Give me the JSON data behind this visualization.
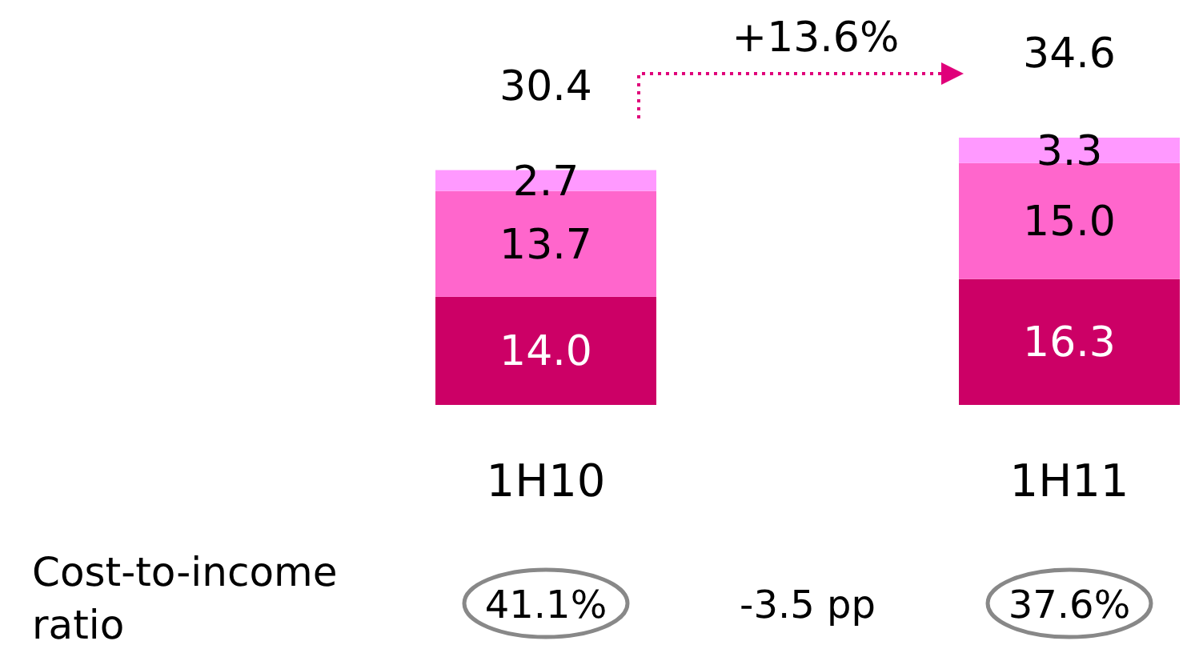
{
  "chart_data": {
    "type": "bar",
    "stacked": true,
    "categories": [
      "1H10",
      "1H11"
    ],
    "series": [
      {
        "color": "#cc0066",
        "values": [
          14.0,
          16.3
        ],
        "value_labels": [
          "14.0",
          "16.3"
        ]
      },
      {
        "color": "#ff66cc",
        "values": [
          13.7,
          15.0
        ],
        "value_labels": [
          "13.7",
          "15.0"
        ]
      },
      {
        "color": "#ff99ff",
        "values": [
          2.7,
          3.3
        ],
        "value_labels": [
          "2.7",
          "3.3"
        ]
      }
    ],
    "totals": [
      "30.4",
      "34.6"
    ],
    "annotations": [
      "+13.6%",
      "Cost-to-income ratio",
      "41.1%",
      "-3.5 pp",
      "37.6%"
    ]
  }
}
